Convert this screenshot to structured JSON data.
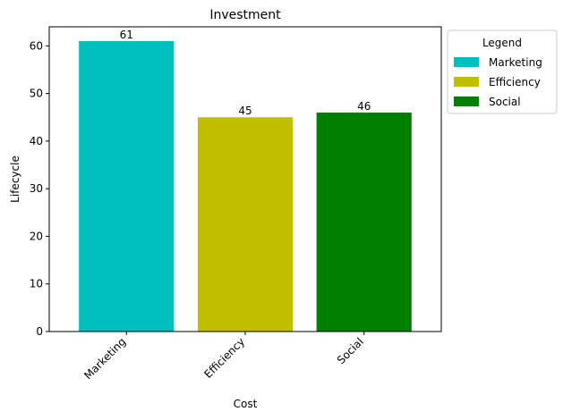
{
  "chart_data": {
    "type": "bar",
    "title": "Investment",
    "xlabel": "Cost",
    "ylabel": "Lifecycle",
    "categories": [
      "Marketing",
      "Efficiency",
      "Social"
    ],
    "values": [
      61,
      45,
      46
    ],
    "colors": [
      "#00bfbf",
      "#bfbf00",
      "#008000"
    ],
    "ylim": [
      0,
      64
    ],
    "yticks": [
      0,
      10,
      20,
      30,
      40,
      50,
      60
    ],
    "grid": false,
    "legend": {
      "title": "Legend",
      "placement": "outside-right-top",
      "entries": [
        "Marketing",
        "Efficiency",
        "Social"
      ]
    }
  }
}
